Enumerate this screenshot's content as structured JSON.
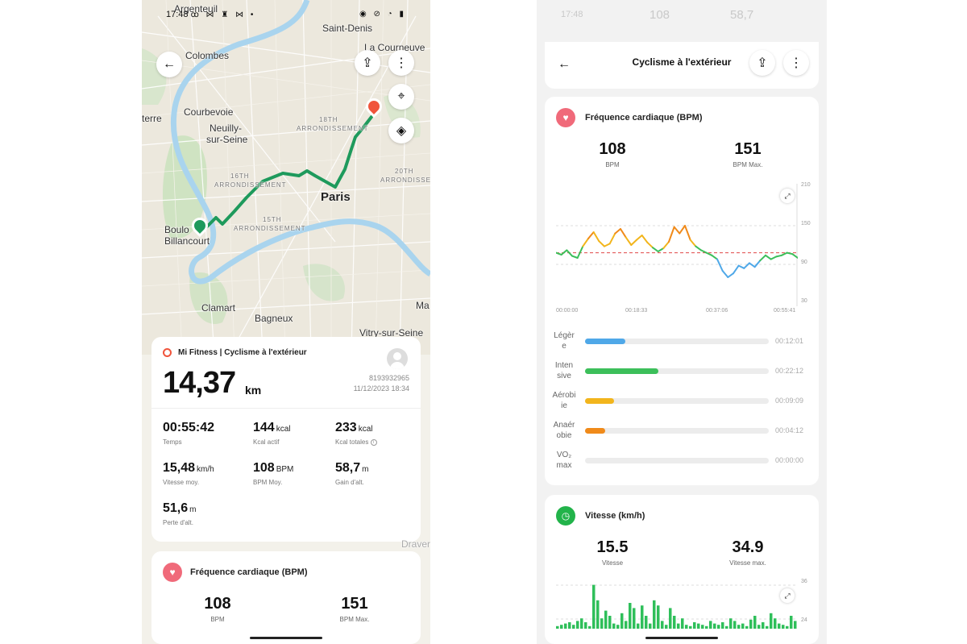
{
  "left": {
    "status": {
      "time": "17:48",
      "icons_left": "ꝏ ⋈ ♜ ⋈ •",
      "icons_right": "◉ ⊘ ◔ ▮"
    },
    "map": {
      "places": [
        "Argenteuil",
        "Saint-Denis",
        "La Courneuve",
        "Colombes",
        "Courbevoie",
        "Neuilly-",
        "sur-Seine",
        "terre",
        "18TH",
        "ARRONDISSEMENT",
        "16TH",
        "ARRONDISSEMENT",
        "20TH",
        "ARRONDISSEMENT",
        "Paris",
        "15TH",
        "ARRONDISSEMENT",
        "Boulo",
        "Billancourt",
        "Clamart",
        "Bagneux",
        "Ma",
        "Vitry-sur-Seine",
        "Draver"
      ]
    },
    "summary": {
      "title": "Mi Fitness | Cyclisme à l'extérieur",
      "distance": "14,37",
      "distance_unit": "km",
      "account_id": "8193932965",
      "date": "11/12/2023 18:34",
      "stats": [
        {
          "value": "00:55:42",
          "unit": "",
          "label": "Temps"
        },
        {
          "value": "144",
          "unit": "kcal",
          "label": "Kcal actif"
        },
        {
          "value": "233",
          "unit": "kcal",
          "label": "Kcal totales"
        },
        {
          "value": "15,48",
          "unit": "km/h",
          "label": "Vitesse moy."
        },
        {
          "value": "108",
          "unit": "BPM",
          "label": "BPM Moy."
        },
        {
          "value": "58,7",
          "unit": "m",
          "label": "Gain d'alt."
        },
        {
          "value": "51,6",
          "unit": "m",
          "label": "Perte d'alt."
        }
      ],
      "info_glyph": "i"
    },
    "hr_card": {
      "title": "Fréquence cardiaque (BPM)",
      "avg": "108",
      "avg_label": "BPM",
      "max": "151",
      "max_label": "BPM Max."
    }
  },
  "right": {
    "ghost_status": {
      "time": "17:48",
      "a": "108",
      "b": "58,7"
    },
    "header": {
      "title": "Cyclisme à l'extérieur"
    },
    "hr_card": {
      "title": "Fréquence cardiaque (BPM)",
      "avg": "108",
      "avg_label": "BPM",
      "max": "151",
      "max_label": "BPM Max.",
      "y_ticks": [
        "210",
        "150",
        "90",
        "30"
      ],
      "x_ticks": [
        "00:00:00",
        "00:18:33",
        "00:37:06",
        "00:55:41"
      ],
      "zones": [
        {
          "label1": "Légèr",
          "label2": "e",
          "time": "00:12:01",
          "fill": 0.22,
          "color": "#4fa8e8"
        },
        {
          "label1": "Inten",
          "label2": "sive",
          "time": "00:22:12",
          "fill": 0.4,
          "color": "#3cbf5a"
        },
        {
          "label1": "Aérobi",
          "label2": "ie",
          "time": "00:09:09",
          "fill": 0.16,
          "color": "#f2b51c"
        },
        {
          "label1": "Anaér",
          "label2": "obie",
          "time": "00:04:12",
          "fill": 0.11,
          "color": "#f08a1a"
        },
        {
          "label1": "VO₂",
          "label2": "max",
          "time": "00:00:00",
          "fill": 0.0,
          "color": "#e0463c"
        }
      ]
    },
    "speed_card": {
      "title": "Vitesse (km/h)",
      "avg": "15.5",
      "avg_label": "Vitesse",
      "max": "34.9",
      "max_label": "Vitesse max.",
      "y_ticks": [
        "36",
        "24"
      ]
    }
  },
  "chart_data": [
    {
      "type": "line",
      "title": "Fréquence cardiaque (BPM)",
      "x_ticks": [
        "00:00:00",
        "00:18:33",
        "00:37:06",
        "00:55:41"
      ],
      "ylim": [
        30,
        210
      ],
      "reference_line": 108,
      "series": [
        {
          "values": [
            108,
            105,
            112,
            103,
            100,
            118,
            130,
            140,
            126,
            118,
            122,
            138,
            145,
            132,
            120,
            128,
            135,
            124,
            116,
            110,
            115,
            125,
            148,
            138,
            150,
            128,
            118,
            112,
            108,
            104,
            98,
            80,
            70,
            76,
            88,
            84,
            92,
            86,
            96,
            104,
            98,
            102,
            104,
            108,
            106,
            100
          ]
        }
      ]
    },
    {
      "type": "area",
      "title": "Vitesse (km/h)",
      "y_ticks": [
        "36",
        "24"
      ]
    }
  ]
}
